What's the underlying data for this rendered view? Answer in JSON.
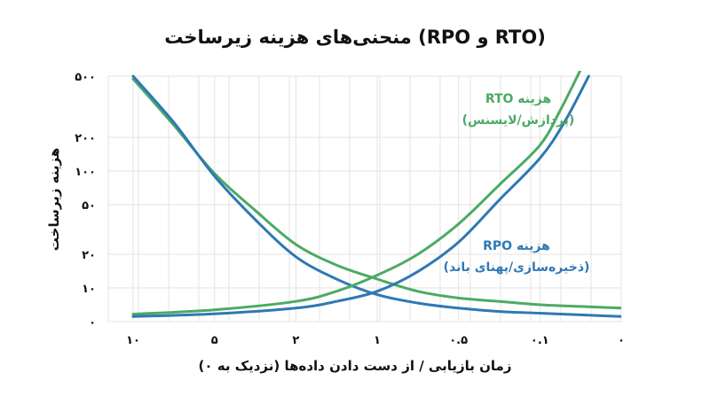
{
  "chart_data": {
    "type": "line",
    "title": "منحنی‌های هزینه زیرساخت (RPO و RTO)",
    "xlabel": "زمان بازیابی / از دست دادن داده‌ها (نزدیک به ۰)",
    "ylabel": "هزینه زیرساخت",
    "x_ticks": [
      "۱۰",
      "۵",
      "۲",
      "۱",
      "۰.۵",
      "۰.۱",
      "۰"
    ],
    "y_ticks": [
      {
        "label": "۵۰۰",
        "value": 500
      },
      {
        "label": "۲۰۰",
        "value": 200
      },
      {
        "label": "۱۰۰",
        "value": 100
      },
      {
        "label": "۵۰",
        "value": 50
      },
      {
        "label": "۲۰",
        "value": 20
      },
      {
        "label": "۱۰",
        "value": 10
      },
      {
        "label": "۰",
        "value": 0
      }
    ],
    "grid": true,
    "series": [
      {
        "name_line1": "هزینه RTO",
        "name_line2": "(پردازش/لایسنس)",
        "color": "#4caa64",
        "points": [
          [
            0,
            480
          ],
          [
            0.5,
            240
          ],
          [
            1,
            95
          ],
          [
            1.5,
            45
          ],
          [
            2,
            24
          ],
          [
            2.5,
            16
          ],
          [
            3,
            12
          ],
          [
            3.5,
            9
          ],
          [
            4,
            7
          ],
          [
            4.5,
            6
          ],
          [
            5,
            5
          ],
          [
            5.5,
            4.5
          ],
          [
            6,
            4
          ]
        ]
      },
      {
        "name_line1": "هزینه RPO",
        "name_line2": "(ذخیره‌سازی/پهنای باند)",
        "color": "#2f78b4",
        "points": [
          [
            0,
            500
          ],
          [
            0.5,
            250
          ],
          [
            1,
            90
          ],
          [
            1.5,
            38
          ],
          [
            2,
            19
          ],
          [
            2.5,
            12
          ],
          [
            3,
            8
          ],
          [
            3.5,
            5.5
          ],
          [
            4,
            4
          ],
          [
            4.5,
            3
          ],
          [
            5,
            2.5
          ],
          [
            5.5,
            2
          ],
          [
            6,
            1.5
          ]
        ]
      },
      {
        "color": "#4caa64",
        "points": [
          [
            0,
            2.2
          ],
          [
            1,
            3.5
          ],
          [
            2,
            6
          ],
          [
            2.5,
            9
          ],
          [
            3,
            13
          ],
          [
            3.5,
            20
          ],
          [
            4,
            35
          ],
          [
            4.5,
            75
          ],
          [
            5,
            170
          ],
          [
            5.25,
            300
          ],
          [
            5.5,
            550
          ]
        ]
      },
      {
        "color": "#2f78b4",
        "points": [
          [
            0,
            1.5
          ],
          [
            1,
            2.3
          ],
          [
            2,
            4
          ],
          [
            2.5,
            6
          ],
          [
            3,
            9
          ],
          [
            3.5,
            14
          ],
          [
            4,
            25
          ],
          [
            4.5,
            55
          ],
          [
            5,
            130
          ],
          [
            5.3,
            250
          ],
          [
            5.6,
            500
          ]
        ]
      }
    ]
  }
}
